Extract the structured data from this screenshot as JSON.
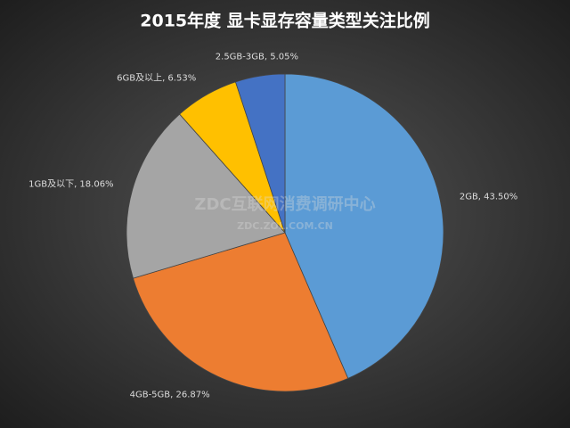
{
  "chart_data": {
    "type": "pie",
    "title": "2015年度  显卡显存容量类型关注比例",
    "values": [
      43.5,
      26.87,
      18.06,
      6.53,
      5.05
    ],
    "value_labels": [
      "2GB, 43.50%",
      "4GB-5GB, 26.87%",
      "1GB及以下, 18.06%",
      "6GB及以上, 6.53%",
      "2.5GB-3GB, 5.05%"
    ],
    "colors": [
      "#5b9bd5",
      "#ed7d31",
      "#a5a5a5",
      "#ffc000",
      "#4472c4"
    ],
    "watermark": [
      "ZDC互联网消费调研中心",
      "ZDC.ZOL.COM.CN"
    ]
  }
}
